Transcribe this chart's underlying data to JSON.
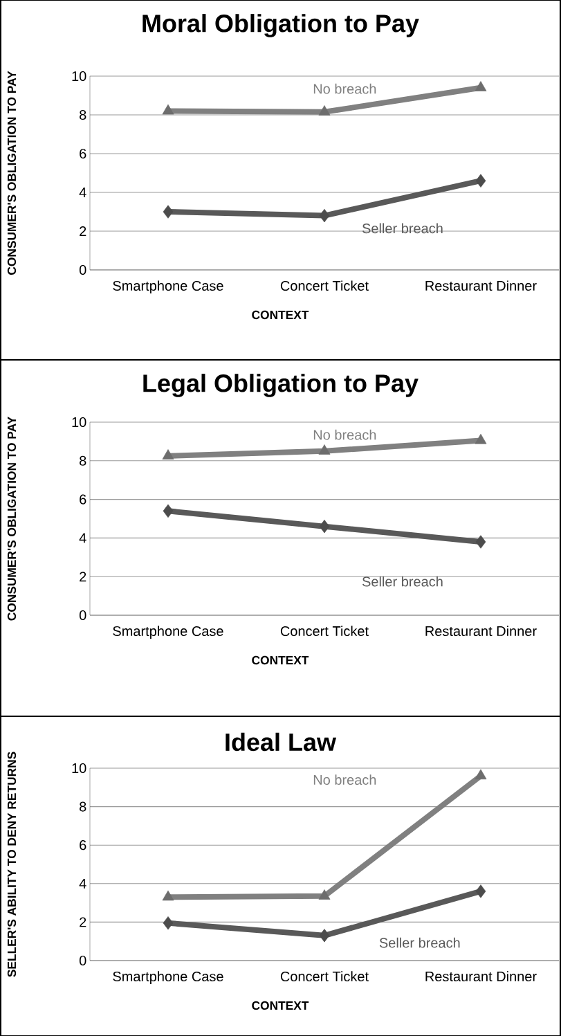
{
  "chart_data": [
    {
      "type": "line",
      "title": "Moral Obligation to Pay",
      "xlabel": "CONTEXT",
      "ylabel": "CONSUMER'S OBLIGATION TO PAY",
      "categories": [
        "Smartphone Case",
        "Concert Ticket",
        "Restaurant Dinner"
      ],
      "ylim": [
        0,
        10
      ],
      "yticks": [
        0,
        2,
        4,
        6,
        8,
        10
      ],
      "grid": "y",
      "series": [
        {
          "name": "No breach",
          "color": "#808080",
          "marker": "triangle",
          "values": [
            8.2,
            8.15,
            9.4
          ]
        },
        {
          "name": "Seller breach",
          "color": "#595959",
          "marker": "diamond",
          "values": [
            3.0,
            2.8,
            4.6
          ]
        }
      ]
    },
    {
      "type": "line",
      "title": "Legal Obligation to Pay",
      "xlabel": "CONTEXT",
      "ylabel": "CONSUMER'S OBLIGATION TO PAY",
      "categories": [
        "Smartphone Case",
        "Concert Ticket",
        "Restaurant Dinner"
      ],
      "ylim": [
        0,
        10
      ],
      "yticks": [
        0,
        2,
        4,
        6,
        8,
        10
      ],
      "grid": "y",
      "series": [
        {
          "name": "No breach",
          "color": "#808080",
          "marker": "triangle",
          "values": [
            8.25,
            8.5,
            9.05
          ]
        },
        {
          "name": "Seller breach",
          "color": "#595959",
          "marker": "diamond",
          "values": [
            5.4,
            4.6,
            3.8
          ]
        }
      ]
    },
    {
      "type": "line",
      "title": "Ideal Law",
      "xlabel": "CONTEXT",
      "ylabel": "SELLER'S ABILITY TO DENY RETURNS",
      "categories": [
        "Smartphone Case",
        "Concert Ticket",
        "Restaurant Dinner"
      ],
      "ylim": [
        0,
        10
      ],
      "yticks": [
        0,
        2,
        4,
        6,
        8,
        10
      ],
      "grid": "y",
      "series": [
        {
          "name": "No breach",
          "color": "#808080",
          "marker": "triangle",
          "values": [
            3.3,
            3.35,
            9.6
          ]
        },
        {
          "name": "Seller breach",
          "color": "#595959",
          "marker": "diamond",
          "values": [
            1.95,
            1.3,
            3.6
          ]
        }
      ]
    }
  ]
}
